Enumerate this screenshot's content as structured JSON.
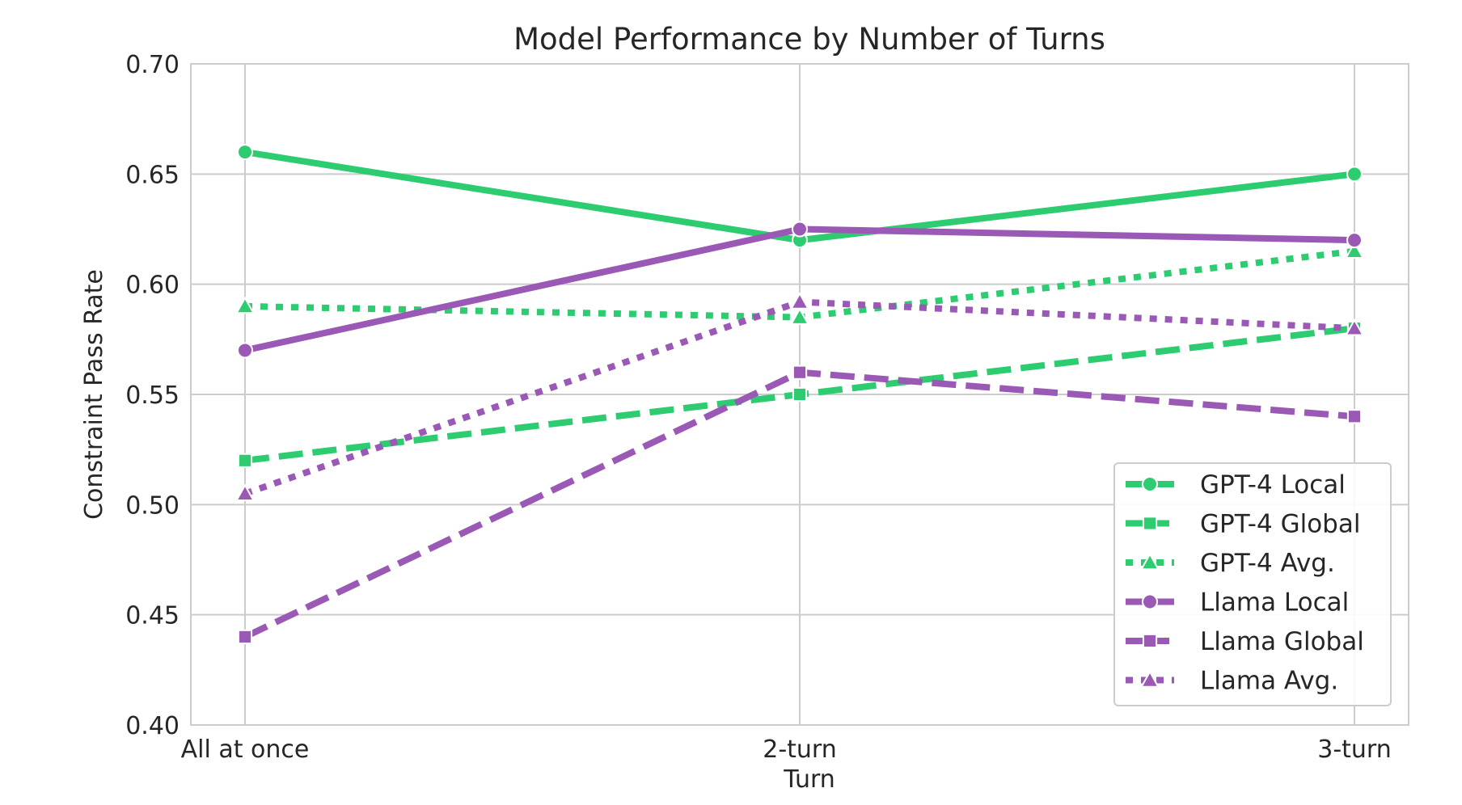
{
  "chart_data": {
    "type": "line",
    "title": "Model Performance by Number of Turns",
    "xlabel": "Turn",
    "ylabel": "Constraint Pass Rate",
    "categories": [
      "All at once",
      "2-turn",
      "3-turn"
    ],
    "ylim": [
      0.4,
      0.7
    ],
    "yticks": [
      0.4,
      0.45,
      0.5,
      0.55,
      0.6,
      0.65,
      0.7
    ],
    "ytick_labels": [
      "0.40",
      "0.45",
      "0.50",
      "0.55",
      "0.60",
      "0.65",
      "0.70"
    ],
    "grid": true,
    "legend_position": "bottom-right",
    "series": [
      {
        "name": "GPT-4 Local",
        "values": [
          0.66,
          0.62,
          0.65
        ],
        "color": "#2ecc71",
        "style": "solid",
        "marker": "circle"
      },
      {
        "name": "GPT-4 Global",
        "values": [
          0.52,
          0.55,
          0.58
        ],
        "color": "#2ecc71",
        "style": "dashed",
        "marker": "square"
      },
      {
        "name": "GPT-4 Avg.",
        "values": [
          0.59,
          0.585,
          0.615
        ],
        "color": "#2ecc71",
        "style": "dotted",
        "marker": "triangle"
      },
      {
        "name": "Llama Local",
        "values": [
          0.57,
          0.625,
          0.62
        ],
        "color": "#9b59b6",
        "style": "solid",
        "marker": "circle"
      },
      {
        "name": "Llama Global",
        "values": [
          0.44,
          0.56,
          0.54
        ],
        "color": "#9b59b6",
        "style": "dashed",
        "marker": "square"
      },
      {
        "name": "Llama Avg.",
        "values": [
          0.505,
          0.592,
          0.58
        ],
        "color": "#9b59b6",
        "style": "dotted",
        "marker": "triangle"
      }
    ]
  }
}
